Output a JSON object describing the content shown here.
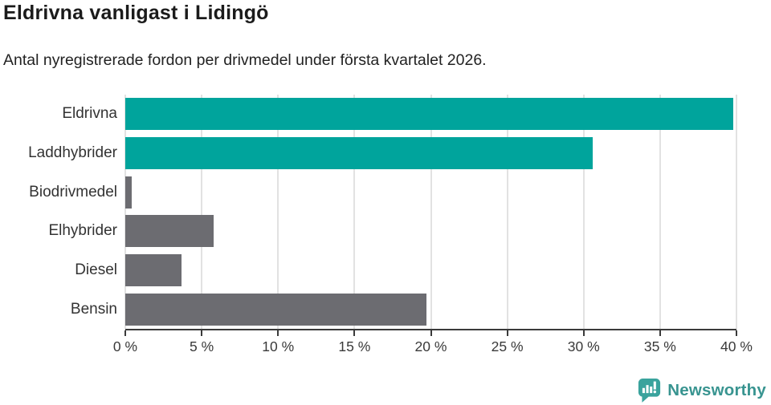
{
  "title": "Eldrivna vanligast i Lidingö",
  "subtitle": "Antal nyregistrerade fordon per drivmedel under första kvartalet 2026.",
  "chart_data": {
    "type": "bar",
    "orientation": "horizontal",
    "categories": [
      "Eldrivna",
      "Laddhybrider",
      "Biodrivmedel",
      "Elhybrider",
      "Diesel",
      "Bensin"
    ],
    "values": [
      39.8,
      30.6,
      0.4,
      5.8,
      3.7,
      19.7
    ],
    "bar_colors": [
      "#00a49c",
      "#00a49c",
      "#6c6c71",
      "#6c6c71",
      "#6c6c71",
      "#6c6c71"
    ],
    "xlim": [
      0,
      40
    ],
    "x_ticks": [
      0,
      5,
      10,
      15,
      20,
      25,
      30,
      35,
      40
    ],
    "x_tick_labels": [
      "0 %",
      "5 %",
      "10 %",
      "15 %",
      "20 %",
      "25 %",
      "30 %",
      "35 %",
      "40 %"
    ],
    "grid": "vertical-gridlines-on",
    "legend": "none",
    "title": "Eldrivna vanligast i Lidingö",
    "xlabel": "",
    "ylabel": ""
  },
  "colors": {
    "accent_teal": "#00a49c",
    "bar_gray": "#6c6c71",
    "axis": "#3a3a3a",
    "gridline": "#e2e2e2",
    "text": "#333333",
    "logo_icon_teal": "#3aa39d",
    "logo_text_teal": "#389490"
  },
  "footer": {
    "brand": "Newsworthy"
  }
}
